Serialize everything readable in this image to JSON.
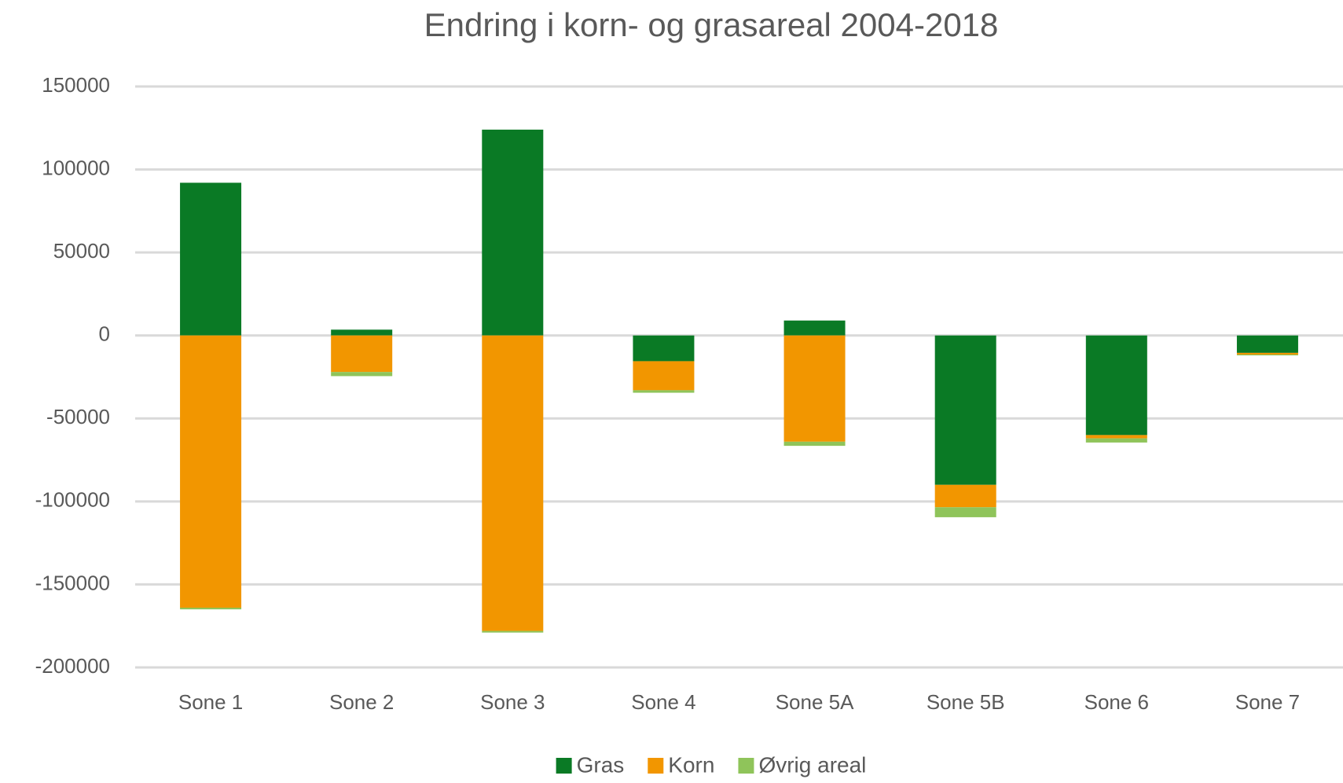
{
  "chart_data": {
    "type": "stacked_bar",
    "title": "Endring i korn- og grasareal 2004-2018",
    "categories": [
      "Sone 1",
      "Sone 2",
      "Sone 3",
      "Sone 4",
      "Sone 5A",
      "Sone 5B",
      "Sone 6",
      "Sone 7"
    ],
    "series": [
      {
        "name": "Gras",
        "color": "#0a7a25",
        "values": [
          92000,
          3500,
          124000,
          -15500,
          9000,
          -90000,
          -60000,
          -10500
        ]
      },
      {
        "name": "Korn",
        "color": "#f29600",
        "values": [
          -164000,
          -22000,
          -178000,
          -17500,
          -64000,
          -13500,
          -2000,
          -1000
        ]
      },
      {
        "name": "Øvrig areal",
        "color": "#8fc45a",
        "values": [
          -1000,
          -2500,
          -1000,
          -1500,
          -2500,
          -6000,
          -2500,
          -500
        ]
      }
    ],
    "ylim": [
      -200000,
      150000
    ],
    "yticks": [
      -200000,
      -150000,
      -100000,
      -50000,
      0,
      50000,
      100000,
      150000
    ],
    "grid": true,
    "legend": "bottom"
  }
}
